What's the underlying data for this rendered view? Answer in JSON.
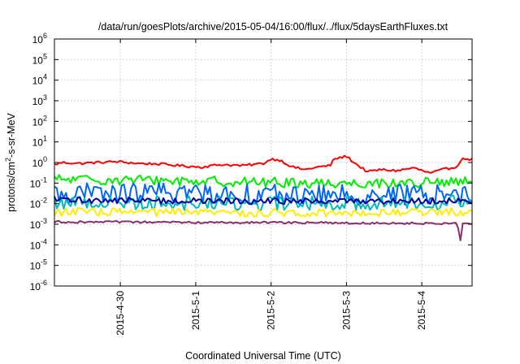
{
  "chart_data": {
    "type": "line",
    "title": "/data/run/goesPlots/archive/2015-05-04/16:00/flux/../flux/5daysEarthFluxes.txt",
    "xlabel": "Coordinated Universal Time (UTC)",
    "ylabel": {
      "prefix": "protons/cm",
      "sup": "2",
      "suffix": "-s-sr-MeV"
    },
    "yscale": "log",
    "ylim_exponents": [
      -6,
      6
    ],
    "ytick_base": "10",
    "ytick_exponents": [
      "-6",
      "-5",
      "-4",
      "-3",
      "-2",
      "-1",
      "0",
      "1",
      "2",
      "3",
      "4",
      "5",
      "6"
    ],
    "xlim": [
      "2015-04-29T03:00",
      "2015-05-04T16:00"
    ],
    "xticks": [
      {
        "label": "2015-4-30",
        "date": "2015-04-30T00:00"
      },
      {
        "label": "2015-5-1",
        "date": "2015-05-01T00:00"
      },
      {
        "label": "2015-5-2",
        "date": "2015-05-02T00:00"
      },
      {
        "label": "2015-5-3",
        "date": "2015-05-03T00:00"
      },
      {
        "label": "2015-5-4",
        "date": "2015-05-04T00:00"
      }
    ],
    "grid": true,
    "legend": "none",
    "series": [
      {
        "color": "#ff0000",
        "profile": [
          [
            0,
            0.8
          ],
          [
            0.02,
            1.0
          ],
          [
            0.06,
            0.9
          ],
          [
            0.1,
            1.0
          ],
          [
            0.15,
            1.1
          ],
          [
            0.2,
            0.9
          ],
          [
            0.25,
            0.85
          ],
          [
            0.3,
            0.7
          ],
          [
            0.35,
            0.6
          ],
          [
            0.4,
            0.8
          ],
          [
            0.45,
            0.7
          ],
          [
            0.5,
            0.9
          ],
          [
            0.52,
            1.5
          ],
          [
            0.54,
            1.3
          ],
          [
            0.57,
            0.6
          ],
          [
            0.6,
            0.45
          ],
          [
            0.63,
            0.6
          ],
          [
            0.66,
            0.7
          ],
          [
            0.67,
            1.5
          ],
          [
            0.7,
            2.0
          ],
          [
            0.72,
            0.9
          ],
          [
            0.75,
            0.35
          ],
          [
            0.78,
            0.45
          ],
          [
            0.82,
            0.4
          ],
          [
            0.86,
            0.55
          ],
          [
            0.9,
            0.3
          ],
          [
            0.93,
            0.45
          ],
          [
            0.96,
            0.6
          ],
          [
            0.98,
            1.6
          ],
          [
            1.0,
            1.4
          ]
        ],
        "noise": 0.06
      },
      {
        "color": "#00ee00",
        "profile": [
          [
            0,
            0.15
          ],
          [
            0.2,
            0.14
          ],
          [
            0.4,
            0.12
          ],
          [
            0.6,
            0.1
          ],
          [
            0.8,
            0.1
          ],
          [
            1.0,
            0.11
          ]
        ],
        "noise": 0.25
      },
      {
        "color": "#0066ff",
        "profile": [
          [
            0,
            0.03
          ],
          [
            0.3,
            0.035
          ],
          [
            0.6,
            0.025
          ],
          [
            1.0,
            0.03
          ]
        ],
        "noise": 0.5
      },
      {
        "color": "#00bbbb",
        "profile": [
          [
            0,
            0.012
          ],
          [
            0.5,
            0.01
          ],
          [
            1.0,
            0.012
          ]
        ],
        "noise": 0.35
      },
      {
        "color": "#000099",
        "profile": [
          [
            0,
            0.015
          ],
          [
            0.5,
            0.013
          ],
          [
            1.0,
            0.014
          ]
        ],
        "noise": 0.15
      },
      {
        "color": "#ffee00",
        "profile": [
          [
            0,
            0.004
          ],
          [
            0.5,
            0.0035
          ],
          [
            1.0,
            0.004
          ]
        ],
        "noise": 0.2
      },
      {
        "color": "#8b2e6b",
        "profile": [
          [
            0,
            0.0013
          ],
          [
            0.5,
            0.0012
          ],
          [
            0.965,
            0.0011
          ],
          [
            0.972,
            0.00014
          ],
          [
            0.978,
            0.0012
          ],
          [
            1.0,
            0.0011
          ]
        ],
        "noise": 0.05
      }
    ]
  }
}
